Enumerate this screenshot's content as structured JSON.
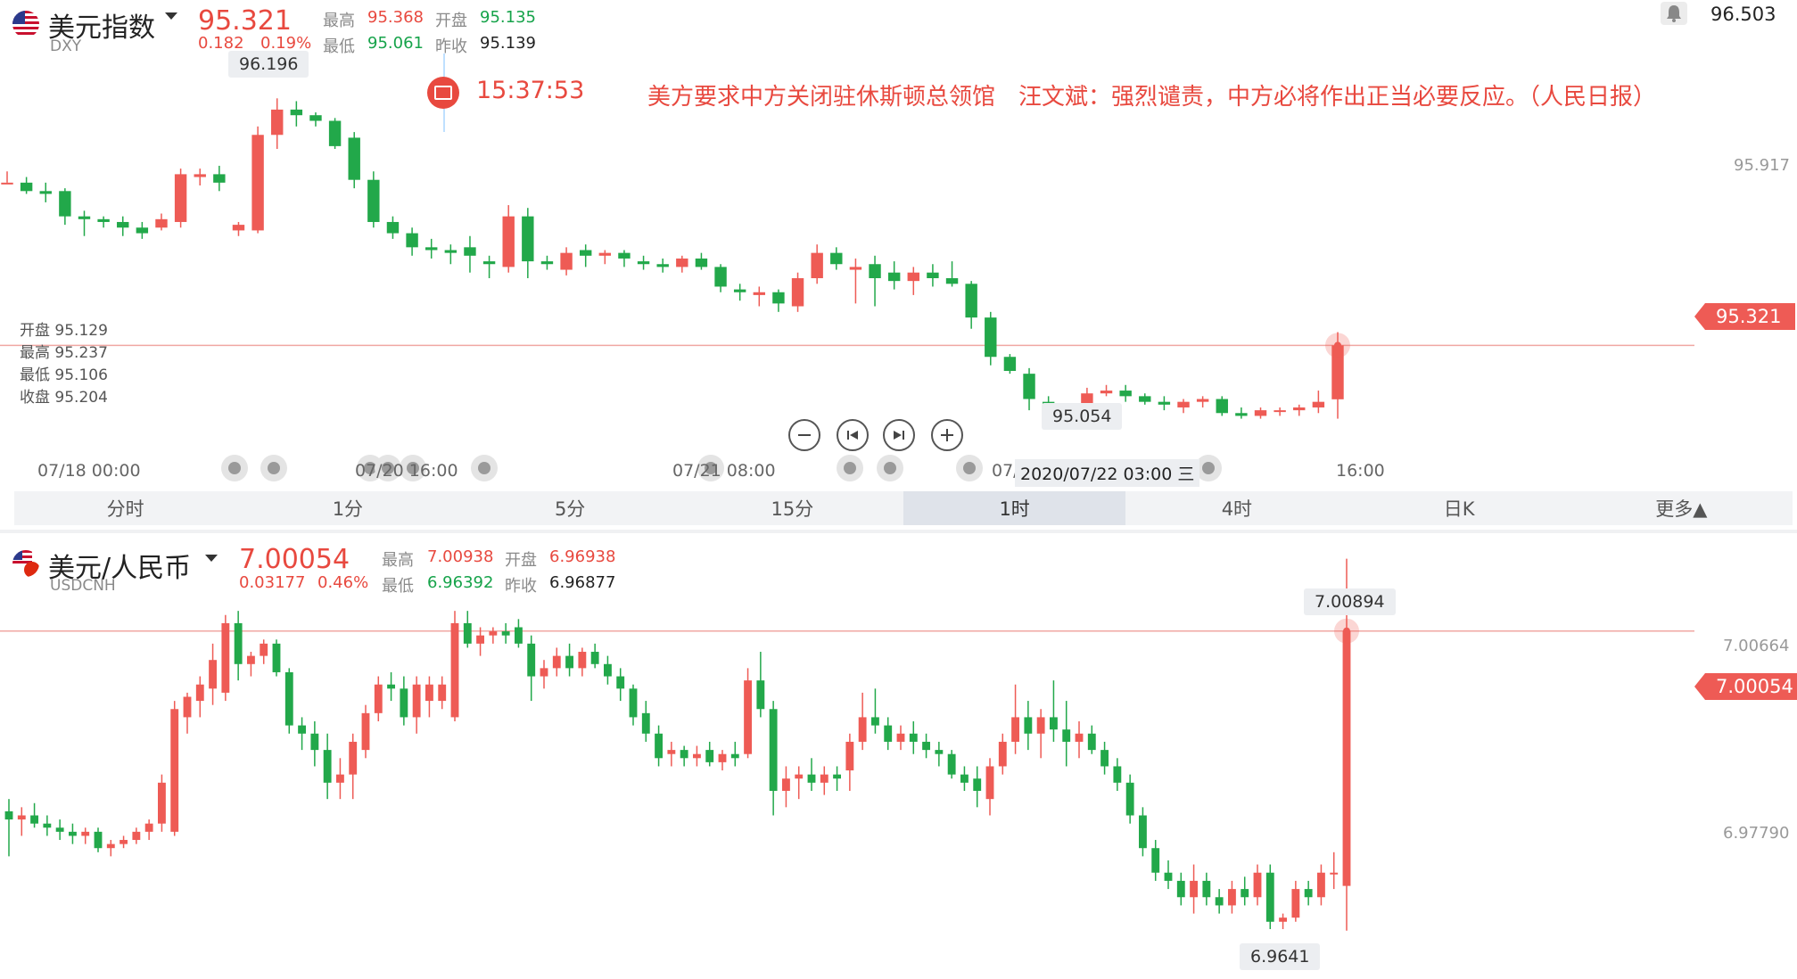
{
  "top": {
    "name": "美元指数",
    "code": "DXY",
    "price": "95.321",
    "change": "0.182",
    "change_pct": "0.19%",
    "stats": {
      "high_label": "最高",
      "high": "95.368",
      "open_label": "开盘",
      "open": "95.135",
      "low_label": "最低",
      "low": "95.061",
      "prev_label": "昨收",
      "prev": "95.139"
    },
    "alert_value": "96.503",
    "news_time": "15:37:53",
    "news_text": "美方要求中方关闭驻休斯顿总领馆　汪文斌：强烈谴责，中方必将作出正当必要反应。（人民日报）",
    "ohlc_panel": [
      {
        "label": "开盘",
        "value": "95.129"
      },
      {
        "label": "最高",
        "value": "95.237"
      },
      {
        "label": "最低",
        "value": "95.106"
      },
      {
        "label": "收盘",
        "value": "95.204"
      }
    ],
    "axis_right_label": "95.917",
    "current_tag": "95.321",
    "high_bubble": "96.196",
    "low_bubble": "95.054",
    "time_labels": [
      "07/18 00:00",
      "07/20 16:00",
      "07/21 08:00",
      "07/",
      "16:00"
    ],
    "cursor_time": "2020/07/22 03:00 三"
  },
  "tabs": [
    "分时",
    "1分",
    "5分",
    "15分",
    "1时",
    "4时",
    "日K",
    "更多▲"
  ],
  "bottom": {
    "name": "美元/人民币",
    "code": "USDCNH",
    "price": "7.00054",
    "change": "0.03177",
    "change_pct": "0.46%",
    "stats": {
      "high_label": "最高",
      "high": "7.00938",
      "open_label": "开盘",
      "open": "6.96938",
      "low_label": "最低",
      "low": "6.96392",
      "prev_label": "昨收",
      "prev": "6.96877"
    },
    "axis_right_labels": [
      "7.00664",
      "6.97790"
    ],
    "current_tag": "7.00054",
    "high_bubble": "7.00894",
    "low_bubble": "6.9641"
  },
  "colors": {
    "up": "#ee5b55",
    "down": "#22a84a",
    "line": "#f0a7a3"
  },
  "chart_data": [
    {
      "type": "candlestick",
      "title": "美元指数 DXY 1时",
      "ylim": [
        94.9,
        96.55
      ],
      "current": 95.321,
      "x": [
        "07/18 00:00",
        "07/20 16:00",
        "07/21 08:00",
        "07/22 03:00",
        "16:00"
      ],
      "candles": [
        [
          95.895,
          95.94,
          95.9,
          95.9
        ],
        [
          95.9,
          95.92,
          95.86,
          95.87
        ],
        [
          95.87,
          95.9,
          95.83,
          95.86
        ],
        [
          95.87,
          95.88,
          95.75,
          95.78
        ],
        [
          95.78,
          95.8,
          95.71,
          95.77
        ],
        [
          95.77,
          95.78,
          95.74,
          95.76
        ],
        [
          95.76,
          95.78,
          95.71,
          95.74
        ],
        [
          95.74,
          95.76,
          95.7,
          95.72
        ],
        [
          95.74,
          95.79,
          95.73,
          95.77
        ],
        [
          95.76,
          95.95,
          95.74,
          95.93
        ],
        [
          95.92,
          95.95,
          95.89,
          95.93
        ],
        [
          95.93,
          95.96,
          95.87,
          95.9
        ],
        [
          95.73,
          95.76,
          95.71,
          95.75
        ],
        [
          95.73,
          96.1,
          95.72,
          96.07
        ],
        [
          96.07,
          96.2,
          96.02,
          96.16
        ],
        [
          96.16,
          96.19,
          96.1,
          96.14
        ],
        [
          96.14,
          96.15,
          96.1,
          96.12
        ],
        [
          96.12,
          96.13,
          96.02,
          96.03
        ],
        [
          96.06,
          96.08,
          95.88,
          95.91
        ],
        [
          95.91,
          95.94,
          95.74,
          95.76
        ],
        [
          95.76,
          95.78,
          95.7,
          95.72
        ],
        [
          95.72,
          95.74,
          95.64,
          95.67
        ],
        [
          95.67,
          95.7,
          95.63,
          95.66
        ],
        [
          95.66,
          95.68,
          95.61,
          95.65
        ],
        [
          95.67,
          95.71,
          95.58,
          95.64
        ],
        [
          95.62,
          95.64,
          95.56,
          95.61
        ],
        [
          95.6,
          95.82,
          95.58,
          95.78
        ],
        [
          95.78,
          95.81,
          95.56,
          95.62
        ],
        [
          95.62,
          95.64,
          95.59,
          95.61
        ],
        [
          95.59,
          95.67,
          95.57,
          95.65
        ],
        [
          95.66,
          95.68,
          95.6,
          95.64
        ],
        [
          95.64,
          95.66,
          95.61,
          95.65
        ],
        [
          95.65,
          95.66,
          95.6,
          95.63
        ],
        [
          95.62,
          95.64,
          95.59,
          95.61
        ],
        [
          95.61,
          95.63,
          95.58,
          95.6
        ],
        [
          95.6,
          95.64,
          95.58,
          95.63
        ],
        [
          95.63,
          95.65,
          95.59,
          95.6
        ],
        [
          95.6,
          95.61,
          95.51,
          95.53
        ],
        [
          95.52,
          95.54,
          95.48,
          95.51
        ],
        [
          95.5,
          95.53,
          95.46,
          95.51
        ],
        [
          95.51,
          95.52,
          95.44,
          95.47
        ],
        [
          95.46,
          95.58,
          95.44,
          95.56
        ],
        [
          95.56,
          95.68,
          95.54,
          95.65
        ],
        [
          95.65,
          95.67,
          95.59,
          95.61
        ],
        [
          95.59,
          95.63,
          95.47,
          95.6
        ],
        [
          95.61,
          95.64,
          95.46,
          95.56
        ],
        [
          95.58,
          95.62,
          95.52,
          95.55
        ],
        [
          95.55,
          95.6,
          95.5,
          95.58
        ],
        [
          95.58,
          95.61,
          95.53,
          95.56
        ],
        [
          95.56,
          95.62,
          95.53,
          95.54
        ],
        [
          95.54,
          95.55,
          95.38,
          95.42
        ],
        [
          95.42,
          95.44,
          95.25,
          95.28
        ],
        [
          95.28,
          95.29,
          95.22,
          95.23
        ],
        [
          95.22,
          95.24,
          95.09,
          95.13
        ],
        [
          95.12,
          95.14,
          95.04,
          95.06
        ],
        [
          95.06,
          95.11,
          95.054,
          95.09
        ],
        [
          95.09,
          95.17,
          95.08,
          95.15
        ],
        [
          95.15,
          95.18,
          95.14,
          95.16
        ],
        [
          95.16,
          95.18,
          95.12,
          95.14
        ],
        [
          95.14,
          95.15,
          95.11,
          95.12
        ],
        [
          95.12,
          95.14,
          95.09,
          95.11
        ],
        [
          95.1,
          95.13,
          95.08,
          95.12
        ],
        [
          95.12,
          95.14,
          95.1,
          95.13
        ],
        [
          95.13,
          95.14,
          95.07,
          95.08
        ],
        [
          95.08,
          95.1,
          95.06,
          95.07
        ],
        [
          95.07,
          95.1,
          95.06,
          95.09
        ],
        [
          95.09,
          95.1,
          95.07,
          95.09
        ],
        [
          95.09,
          95.11,
          95.07,
          95.1
        ],
        [
          95.1,
          95.16,
          95.08,
          95.12
        ],
        [
          95.129,
          95.368,
          95.06,
          95.321
        ]
      ]
    },
    {
      "type": "candlestick",
      "title": "美元/人民币 USDCNH",
      "ylim": [
        6.958,
        7.0125
      ],
      "current": 7.00054,
      "candles": [
        [
          6.9785,
          6.98,
          6.973,
          6.9775
        ],
        [
          6.9775,
          6.979,
          6.9755,
          6.978
        ],
        [
          6.978,
          6.9795,
          6.9765,
          6.977
        ],
        [
          6.977,
          6.978,
          6.9755,
          6.9765
        ],
        [
          6.9765,
          6.9775,
          6.975,
          6.976
        ],
        [
          6.976,
          6.977,
          6.9745,
          6.9755
        ],
        [
          6.9755,
          6.9765,
          6.9745,
          6.976
        ],
        [
          6.976,
          6.9765,
          6.9735,
          6.974
        ],
        [
          6.974,
          6.975,
          6.973,
          6.9745
        ],
        [
          6.9745,
          6.9755,
          6.974,
          6.975
        ],
        [
          6.975,
          6.9765,
          6.9745,
          6.976
        ],
        [
          6.976,
          6.9775,
          6.975,
          6.977
        ],
        [
          6.977,
          6.983,
          6.976,
          6.982
        ],
        [
          6.976,
          6.992,
          6.9755,
          6.991
        ],
        [
          6.99,
          6.993,
          6.988,
          6.9925
        ],
        [
          6.992,
          6.995,
          6.99,
          6.994
        ],
        [
          6.9935,
          6.999,
          6.9915,
          6.997
        ],
        [
          6.993,
          7.0025,
          6.992,
          7.0015
        ],
        [
          7.0015,
          7.003,
          6.9945,
          6.9965
        ],
        [
          6.9965,
          6.998,
          6.995,
          6.9975
        ],
        [
          6.9975,
          6.9995,
          6.9965,
          6.999
        ],
        [
          6.999,
          6.9995,
          6.995,
          6.9955
        ],
        [
          6.9955,
          6.996,
          6.988,
          6.989
        ],
        [
          6.989,
          6.99,
          6.986,
          6.988
        ],
        [
          6.988,
          6.9895,
          6.984,
          6.986
        ],
        [
          6.986,
          6.988,
          6.98,
          6.982
        ],
        [
          6.982,
          6.985,
          6.98,
          6.983
        ],
        [
          6.983,
          6.988,
          6.98,
          6.987
        ],
        [
          6.986,
          6.9915,
          6.985,
          6.9905
        ],
        [
          6.9905,
          6.995,
          6.9895,
          6.994
        ],
        [
          6.994,
          6.9955,
          6.992,
          6.9935
        ],
        [
          6.9935,
          6.995,
          6.989,
          6.99
        ],
        [
          6.99,
          6.995,
          6.988,
          6.994
        ],
        [
          6.992,
          6.995,
          6.99,
          6.994
        ],
        [
          6.992,
          6.995,
          6.991,
          6.994
        ],
        [
          6.99,
          7.003,
          6.9895,
          7.0015
        ],
        [
          7.0015,
          7.003,
          6.9985,
          6.999
        ],
        [
          6.999,
          7.001,
          6.9975,
          7.0
        ],
        [
          7.0,
          7.001,
          6.999,
          7.0005
        ],
        [
          7.0005,
          7.0015,
          6.999,
          7.0
        ],
        [
          7.001,
          7.002,
          6.9985,
          6.999
        ],
        [
          6.999,
          7.0,
          6.992,
          6.995
        ],
        [
          6.995,
          6.997,
          6.9935,
          6.996
        ],
        [
          6.996,
          6.9985,
          6.995,
          6.9975
        ],
        [
          6.9975,
          6.999,
          6.995,
          6.996
        ],
        [
          6.996,
          6.9985,
          6.995,
          6.998
        ],
        [
          6.998,
          6.999,
          6.996,
          6.9965
        ],
        [
          6.9965,
          6.9975,
          6.994,
          6.995
        ],
        [
          6.995,
          6.996,
          6.992,
          6.9935
        ],
        [
          6.9935,
          6.994,
          6.989,
          6.99
        ],
        [
          6.9905,
          6.992,
          6.987,
          6.988
        ],
        [
          6.988,
          6.989,
          6.984,
          6.985
        ],
        [
          6.9855,
          6.987,
          6.984,
          6.986
        ],
        [
          6.986,
          6.9865,
          6.984,
          6.985
        ],
        [
          6.985,
          6.9865,
          6.984,
          6.9855
        ],
        [
          6.986,
          6.987,
          6.984,
          6.9845
        ],
        [
          6.9845,
          6.986,
          6.9835,
          6.9855
        ],
        [
          6.9855,
          6.987,
          6.984,
          6.985
        ],
        [
          6.9855,
          6.996,
          6.985,
          6.9945
        ],
        [
          6.9945,
          6.998,
          6.99,
          6.991
        ],
        [
          6.991,
          6.992,
          6.978,
          6.981
        ],
        [
          6.981,
          6.984,
          6.979,
          6.9825
        ],
        [
          6.9825,
          6.984,
          6.98,
          6.983
        ],
        [
          6.983,
          6.985,
          6.981,
          6.982
        ],
        [
          6.982,
          6.984,
          6.9805,
          6.983
        ],
        [
          6.983,
          6.984,
          6.981,
          6.9825
        ],
        [
          6.9835,
          6.988,
          6.981,
          6.987
        ],
        [
          6.987,
          6.993,
          6.986,
          6.99
        ],
        [
          6.99,
          6.9935,
          6.988,
          6.989
        ],
        [
          6.989,
          6.99,
          6.986,
          6.987
        ],
        [
          6.987,
          6.989,
          6.986,
          6.988
        ],
        [
          6.988,
          6.9895,
          6.9855,
          6.987
        ],
        [
          6.987,
          6.988,
          6.985,
          6.986
        ],
        [
          6.986,
          6.987,
          6.984,
          6.9855
        ],
        [
          6.9855,
          6.986,
          6.9825,
          6.983
        ],
        [
          6.983,
          6.984,
          6.981,
          6.982
        ],
        [
          6.9825,
          6.984,
          6.979,
          6.981
        ],
        [
          6.98,
          6.985,
          6.978,
          6.984
        ],
        [
          6.984,
          6.988,
          6.983,
          6.987
        ],
        [
          6.987,
          6.994,
          6.9855,
          6.99
        ],
        [
          6.99,
          6.992,
          6.986,
          6.988
        ],
        [
          6.988,
          6.991,
          6.985,
          6.99
        ],
        [
          6.99,
          6.9945,
          6.987,
          6.9885
        ],
        [
          6.9885,
          6.992,
          6.984,
          6.987
        ],
        [
          6.987,
          6.9895,
          6.985,
          6.988
        ],
        [
          6.988,
          6.989,
          6.9855,
          6.986
        ],
        [
          6.986,
          6.987,
          6.983,
          6.984
        ],
        [
          6.984,
          6.985,
          6.981,
          6.982
        ],
        [
          6.982,
          6.983,
          6.977,
          6.978
        ],
        [
          6.978,
          6.979,
          6.973,
          6.974
        ],
        [
          6.974,
          6.975,
          6.97,
          6.971
        ],
        [
          6.971,
          6.9725,
          6.969,
          6.97
        ],
        [
          6.97,
          6.971,
          6.967,
          6.968
        ],
        [
          6.968,
          6.972,
          6.966,
          6.97
        ],
        [
          6.97,
          6.971,
          6.967,
          6.968
        ],
        [
          6.968,
          6.969,
          6.966,
          6.967
        ],
        [
          6.967,
          6.97,
          6.966,
          6.969
        ],
        [
          6.969,
          6.9705,
          6.967,
          6.968
        ],
        [
          6.968,
          6.972,
          6.967,
          6.971
        ],
        [
          6.971,
          6.972,
          6.9641,
          6.965
        ],
        [
          6.965,
          6.966,
          6.9641,
          6.9655
        ],
        [
          6.9655,
          6.97,
          6.965,
          6.969
        ],
        [
          6.969,
          6.97,
          6.967,
          6.968
        ],
        [
          6.968,
          6.972,
          6.967,
          6.971
        ],
        [
          6.971,
          6.9735,
          6.969,
          6.971
        ],
        [
          6.96938,
          7.00938,
          6.96392,
          7.00054
        ]
      ]
    }
  ]
}
